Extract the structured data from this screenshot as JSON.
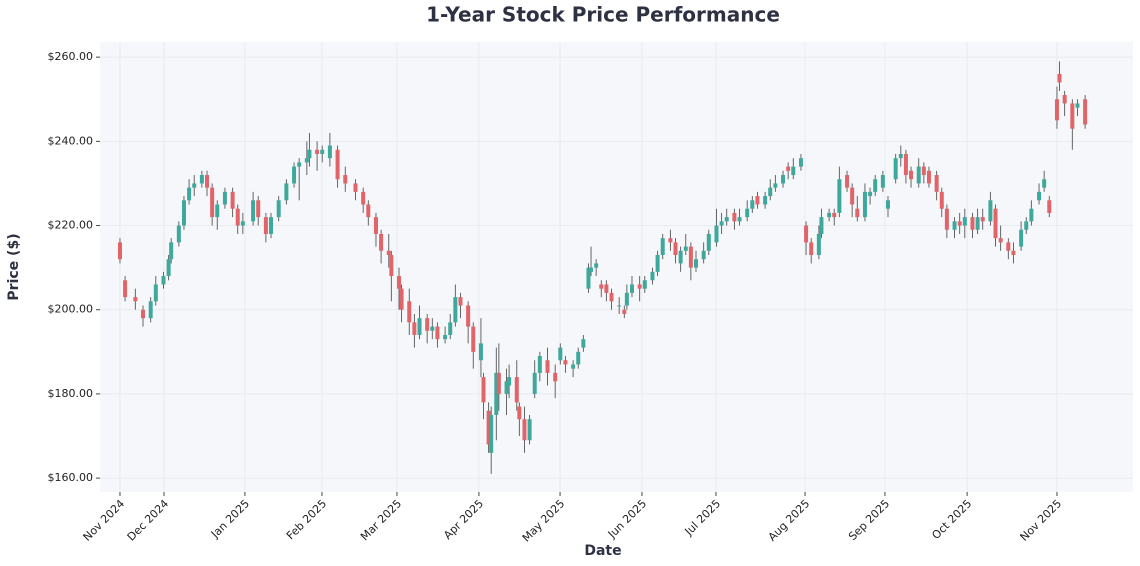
{
  "chart_data": {
    "type": "candlestick",
    "title": "1-Year Stock Price Performance",
    "x_label": "Date",
    "y_label": "Price ($)",
    "x": [
      0,
      2,
      6,
      9,
      12,
      14,
      17,
      19,
      20,
      23,
      25,
      27,
      29,
      32,
      34,
      36,
      38,
      41,
      44,
      46,
      48,
      52,
      54,
      57,
      59,
      62,
      65,
      68,
      70,
      73,
      74,
      77,
      79,
      82,
      85,
      88,
      92,
      95,
      97,
      100,
      102,
      105,
      106,
      109,
      110,
      113,
      115,
      117,
      120,
      122,
      124,
      127,
      129,
      131,
      133,
      136,
      138,
      141,
      142,
      144,
      145,
      147,
      148,
      151,
      152,
      155,
      156,
      158,
      160,
      162,
      164,
      167,
      170,
      172,
      174,
      177,
      179,
      181,
      183,
      184,
      186,
      188,
      190,
      192,
      195,
      197,
      198,
      200,
      203,
      205,
      208,
      210,
      212,
      215,
      217,
      219,
      221,
      223,
      225,
      228,
      230,
      233,
      235,
      237,
      240,
      242,
      245,
      247,
      249,
      252,
      254,
      256,
      259,
      261,
      263,
      266,
      268,
      270,
      273,
      274,
      277,
      279,
      281,
      284,
      286,
      288,
      291,
      293,
      295,
      298,
      300,
      303,
      305,
      307,
      309,
      312,
      314,
      316,
      319,
      321,
      323,
      326,
      328,
      330,
      333,
      335,
      337,
      340,
      342,
      344,
      347,
      349,
      352,
      354,
      356,
      359,
      361,
      363,
      366,
      367,
      369,
      372,
      374,
      377
    ],
    "open": [
      216,
      207,
      203,
      200,
      198,
      202,
      206,
      208,
      212,
      216,
      220,
      226,
      229,
      230,
      232,
      229,
      222,
      225,
      228,
      224,
      220,
      221,
      226,
      222,
      218,
      222,
      226,
      230,
      234,
      235,
      236,
      238,
      237,
      236,
      238,
      232,
      230,
      228,
      225,
      222,
      218,
      214,
      213,
      208,
      205,
      202,
      197,
      194,
      198,
      195,
      196,
      193,
      194,
      197,
      203,
      201,
      196,
      188,
      184,
      176,
      166,
      175,
      185,
      180,
      182,
      184,
      177,
      174,
      169,
      180,
      185,
      188,
      185,
      188,
      188,
      186,
      187,
      191,
      205,
      209,
      210,
      206,
      206,
      204,
      201,
      200,
      201,
      204,
      206,
      205,
      207,
      209,
      213,
      217,
      216,
      211,
      214,
      215,
      210,
      212,
      214,
      216,
      220,
      221,
      223,
      221,
      222,
      224,
      227,
      225,
      227,
      229,
      230,
      234,
      232,
      234,
      220,
      216,
      213,
      218,
      222,
      223,
      223,
      232,
      229,
      224,
      222,
      227,
      228,
      229,
      224,
      231,
      236,
      237,
      233,
      230,
      234,
      233,
      232,
      228,
      224,
      219,
      221,
      220,
      222,
      219,
      222,
      221,
      224,
      217,
      216,
      214,
      215,
      219,
      221,
      226,
      229,
      226,
      250,
      256,
      251,
      249,
      248,
      250
    ],
    "high": [
      217,
      208,
      205,
      201,
      203,
      208,
      209,
      213,
      217,
      221,
      227,
      231,
      232,
      233,
      233,
      230,
      226,
      229,
      229,
      225,
      223,
      228,
      227,
      223,
      223,
      227,
      231,
      235,
      236,
      240,
      242,
      240,
      239,
      242,
      239,
      234,
      231,
      229,
      226,
      223,
      219,
      218,
      214,
      210,
      206,
      205,
      199,
      201,
      199,
      198,
      197,
      196,
      199,
      206,
      204,
      202,
      197,
      198,
      185,
      178,
      177,
      191,
      192,
      186,
      187,
      188,
      178,
      177,
      175,
      188,
      190,
      191,
      187,
      192,
      189,
      188,
      191,
      194,
      211,
      215,
      212,
      207,
      207,
      205,
      203,
      201,
      206,
      208,
      208,
      208,
      210,
      214,
      218,
      219,
      217,
      215,
      218,
      216,
      214,
      216,
      219,
      224,
      223,
      224,
      224,
      224,
      226,
      227,
      228,
      228,
      231,
      232,
      233,
      235,
      236,
      237,
      221,
      217,
      220,
      224,
      224,
      224,
      234,
      233,
      230,
      227,
      230,
      229,
      232,
      233,
      227,
      237,
      239,
      238,
      234,
      236,
      235,
      234,
      233,
      229,
      225,
      222,
      223,
      224,
      223,
      224,
      224,
      228,
      225,
      220,
      217,
      216,
      221,
      222,
      226,
      230,
      233,
      227,
      253,
      259,
      252,
      250,
      250,
      251
    ],
    "low": [
      211,
      202,
      200,
      196,
      197,
      201,
      205,
      207,
      211,
      215,
      219,
      225,
      227,
      229,
      227,
      220,
      219,
      224,
      222,
      218,
      218,
      220,
      220,
      216,
      217,
      221,
      225,
      229,
      226,
      232,
      234,
      233,
      235,
      234,
      229,
      228,
      226,
      223,
      220,
      215,
      211,
      210,
      202,
      200,
      197,
      194,
      191,
      193,
      192,
      193,
      191,
      192,
      193,
      196,
      198,
      192,
      186,
      184,
      174,
      166,
      161,
      169,
      176,
      175,
      179,
      176,
      170,
      166,
      168,
      179,
      183,
      182,
      179,
      187,
      185,
      184,
      186,
      190,
      204,
      208,
      208,
      203,
      202,
      200,
      199,
      198,
      200,
      203,
      202,
      204,
      206,
      208,
      212,
      214,
      211,
      209,
      213,
      207,
      209,
      211,
      213,
      215,
      218,
      220,
      219,
      220,
      221,
      223,
      224,
      224,
      226,
      228,
      229,
      231,
      231,
      233,
      213,
      211,
      212,
      217,
      221,
      220,
      222,
      228,
      222,
      221,
      221,
      225,
      227,
      228,
      222,
      230,
      234,
      230,
      229,
      229,
      230,
      229,
      226,
      222,
      217,
      217,
      218,
      217,
      217,
      218,
      219,
      220,
      215,
      214,
      212,
      211,
      214,
      218,
      220,
      225,
      228,
      222,
      243,
      252,
      246,
      238,
      246,
      243
    ],
    "close": [
      212,
      203,
      202,
      198,
      202,
      206,
      208,
      212,
      216,
      220,
      226,
      229,
      230,
      232,
      229,
      222,
      225,
      228,
      224,
      220,
      221,
      226,
      222,
      218,
      222,
      226,
      230,
      234,
      235,
      236,
      238,
      237,
      238,
      239,
      231,
      230,
      228,
      225,
      222,
      218,
      214,
      213,
      208,
      205,
      200,
      197,
      194,
      198,
      195,
      196,
      193,
      194,
      197,
      203,
      201,
      196,
      190,
      192,
      178,
      168,
      175,
      185,
      180,
      183,
      184,
      178,
      174,
      169,
      174,
      185,
      189,
      185,
      183,
      191,
      187,
      187,
      190,
      193,
      210,
      210,
      211,
      205,
      204,
      202,
      201,
      199,
      204,
      206,
      205,
      207,
      209,
      213,
      217,
      216,
      213,
      214,
      215,
      210,
      212,
      214,
      218,
      220,
      221,
      222,
      221,
      222,
      224,
      226,
      225,
      227,
      229,
      230,
      232,
      233,
      234,
      236,
      216,
      213,
      218,
      222,
      223,
      222,
      231,
      229,
      225,
      222,
      228,
      228,
      231,
      232,
      226,
      236,
      237,
      232,
      231,
      234,
      232,
      230,
      228,
      224,
      219,
      221,
      220,
      222,
      219,
      222,
      221,
      226,
      217,
      216,
      214,
      213,
      219,
      221,
      224,
      228,
      231,
      223,
      245,
      254,
      249,
      243,
      249,
      244
    ],
    "up_color": "#3fa89d",
    "down_color": "#e06468",
    "xlim": [
      -7.8,
      395.7
    ],
    "xticks": [
      {
        "value": 0,
        "label": "Nov 2024"
      },
      {
        "value": 17.2,
        "label": "Dec 2024"
      },
      {
        "value": 48.8,
        "label": "Jan 2025"
      },
      {
        "value": 78.9,
        "label": "Feb 2025"
      },
      {
        "value": 108.2,
        "label": "Mar 2025"
      },
      {
        "value": 140.2,
        "label": "Apr 2025"
      },
      {
        "value": 171.9,
        "label": "May 2025"
      },
      {
        "value": 203.9,
        "label": "Jun 2025"
      },
      {
        "value": 232.8,
        "label": "Jul 2025"
      },
      {
        "value": 267.6,
        "label": "Aug 2025"
      },
      {
        "value": 298.8,
        "label": "Sep 2025"
      },
      {
        "value": 330.9,
        "label": "Oct 2025"
      },
      {
        "value": 366,
        "label": "Nov 2025"
      }
    ],
    "ylim": [
      156.7,
      263.6
    ],
    "yticks": [
      {
        "value": 160,
        "label": "$160.00"
      },
      {
        "value": 180,
        "label": "$180.00"
      },
      {
        "value": 200,
        "label": "$200.00"
      },
      {
        "value": 220,
        "label": "$220.00"
      },
      {
        "value": 240,
        "label": "$240.00"
      },
      {
        "value": 260,
        "label": "$260.00"
      }
    ],
    "grid": true
  }
}
